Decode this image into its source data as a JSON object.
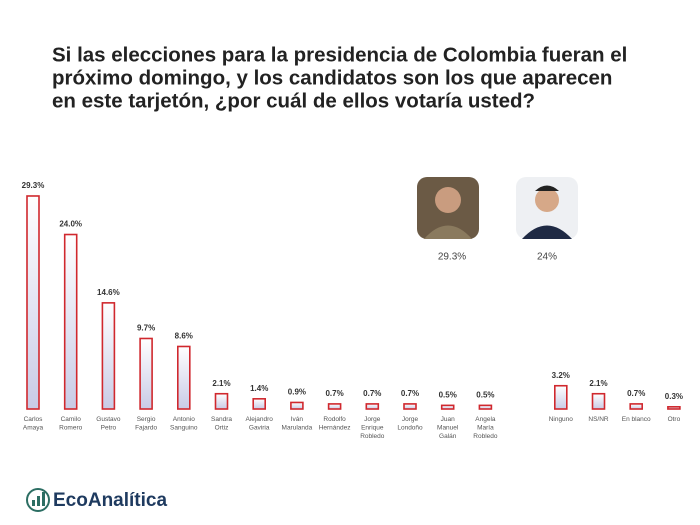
{
  "chart_data": {
    "type": "bar",
    "title": [
      "Si las elecciones para la presidencia de Colombia fueran el",
      "próximo domingo, y los candidatos son los que aparecen",
      "en este tarjetón, ¿por cuál de ellos votaría usted?"
    ],
    "categories": [
      "Carlos\nAmaya",
      "Camilo\nRomero",
      "Gustavo\nPetro",
      "Sergio\nFajardo",
      "Antonio\nSanguino",
      "Sandra\nOrtiz",
      "Alejandro\nGaviria",
      "Iván\nMarulanda",
      "Rodolfo\nHernández",
      "Jorge\nEnrique\nRobledo",
      "Jorge\nLondoño",
      "Juan\nManuel\nGalán",
      "Angela\nMaría\nRobledo",
      null,
      "Ninguno",
      "NS/NR",
      "En blanco",
      "Otro"
    ],
    "values": [
      29.3,
      24.0,
      14.6,
      9.7,
      8.6,
      2.1,
      1.4,
      0.9,
      0.7,
      0.7,
      0.7,
      0.5,
      0.5,
      null,
      3.2,
      2.1,
      0.7,
      0.3
    ],
    "value_labels": [
      "29.3%",
      "24.0%",
      "14.6%",
      "9.7%",
      "8.6%",
      "2.1%",
      "1.4%",
      "0.9%",
      "0.7%",
      "0.7%",
      "0.7%",
      "0.5%",
      "0.5%",
      null,
      "3.2%",
      "2.1%",
      "0.7%",
      "0.3%"
    ],
    "color": "#d0282e",
    "photo_labels": [
      "29.3%",
      "24%"
    ],
    "brand": "EcoAnalítica"
  }
}
